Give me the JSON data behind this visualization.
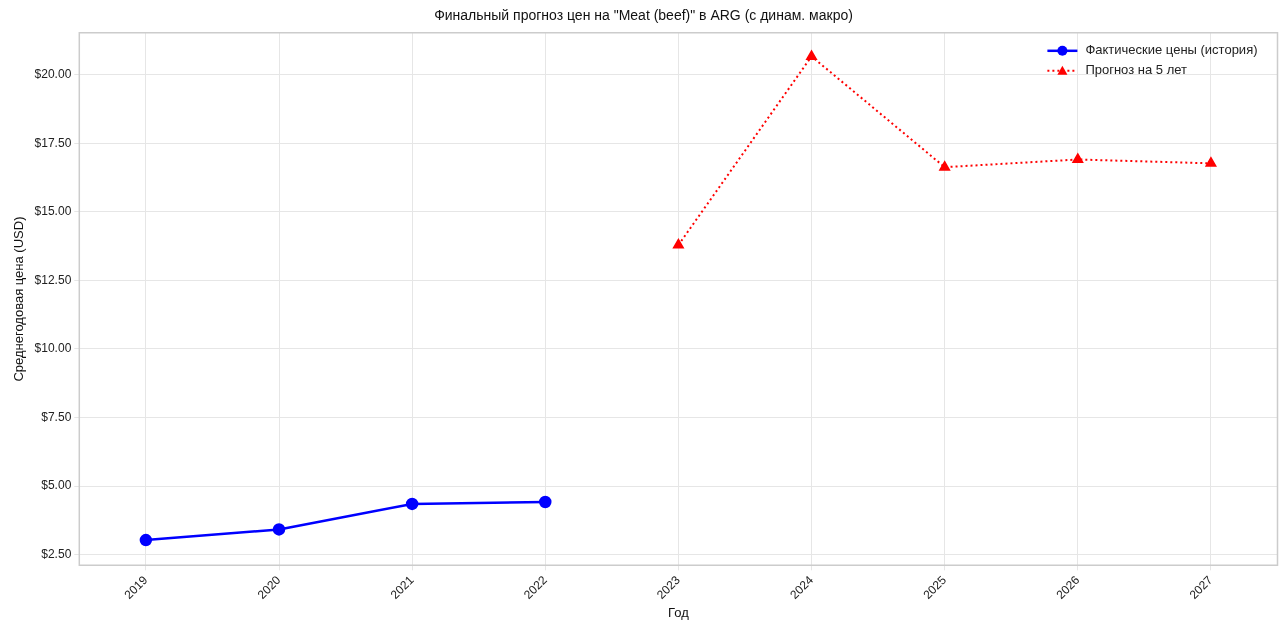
{
  "chart_data": {
    "type": "line",
    "title": "Финальный прогноз цен на \"Meat (beef)\" в ARG (с динам. макро)",
    "xlabel": "Год",
    "ylabel": "Среднегодовая цена (USD)",
    "categories": [
      "2019",
      "2020",
      "2021",
      "2022",
      "2023",
      "2024",
      "2025",
      "2026",
      "2027"
    ],
    "series": [
      {
        "name": "Фактические цены (история)",
        "color": "#0000ff",
        "marker": "circle",
        "line_style": "solid",
        "values": [
          3.03,
          3.42,
          4.35,
          4.42,
          null,
          null,
          null,
          null,
          null
        ]
      },
      {
        "name": "Прогноз на 5 лет",
        "color": "#ff0000",
        "marker": "triangle",
        "line_style": "dotted",
        "values": [
          null,
          null,
          null,
          null,
          13.79,
          20.67,
          16.63,
          16.91,
          16.77
        ]
      }
    ],
    "ylim": [
      2.11,
      21.53
    ],
    "yticks": [
      {
        "value": 2.5,
        "label": "$2.50"
      },
      {
        "value": 5,
        "label": "$5.00"
      },
      {
        "value": 7.5,
        "label": "$7.50"
      },
      {
        "value": 10,
        "label": "$10.00"
      },
      {
        "value": 12.5,
        "label": "$12.50"
      },
      {
        "value": 15,
        "label": "$15.00"
      },
      {
        "value": 17.5,
        "label": "$17.50"
      },
      {
        "value": 20,
        "label": "$20.00"
      }
    ],
    "grid": true,
    "legend": "top right"
  }
}
